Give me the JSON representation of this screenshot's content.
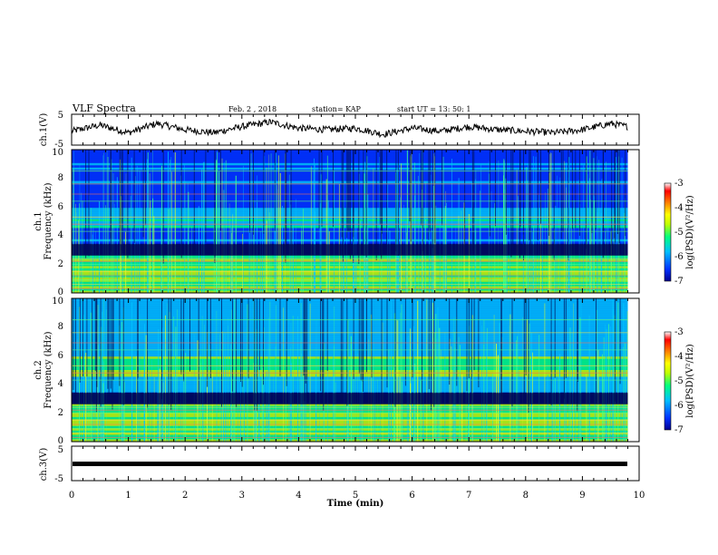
{
  "header": {
    "title": "VLF Spectra",
    "date": "Feb. 2  , 2018",
    "station": "station= KAP",
    "start": "start  UT  =   13: 50: 1"
  },
  "panels": {
    "ch1_wave": {
      "ylabel": "ch.1(V)",
      "ylim": [
        -5,
        5
      ],
      "tick_labels": [
        "5",
        "-5"
      ]
    },
    "ch1_spec": {
      "ylabel": "ch.1\nFrequency (kHz)",
      "ylabel_line1": "ch.1",
      "ylabel_line2": "Frequency (kHz)",
      "ylim": [
        0,
        10
      ],
      "tick_labels": [
        "0",
        "2",
        "4",
        "6",
        "8",
        "10"
      ]
    },
    "ch2_spec": {
      "ylabel_line1": "ch.2",
      "ylabel_line2": "Frequency (kHz)",
      "ylim": [
        0,
        10
      ],
      "tick_labels": [
        "0",
        "2",
        "4",
        "6",
        "8",
        "10"
      ]
    },
    "ch3_wave": {
      "ylabel": "ch.3(V)",
      "ylim": [
        -5,
        5
      ],
      "tick_labels": [
        "5",
        "-5"
      ]
    }
  },
  "xaxis": {
    "label": "Time  (min)",
    "xlim": [
      0,
      10
    ],
    "tick_labels": [
      "0",
      "1",
      "2",
      "3",
      "4",
      "5",
      "6",
      "7",
      "8",
      "9",
      "10"
    ]
  },
  "colorbar": {
    "label": "log(PSD)(V²/Hz)",
    "range": [
      -7,
      -3
    ],
    "tick_labels": [
      "-3",
      "-4",
      "-5",
      "-6",
      "-7"
    ],
    "colors": [
      "#000090",
      "#0030ff",
      "#00c0ff",
      "#00ff80",
      "#c0ff00",
      "#ffff00",
      "#ff8000",
      "#ff0000",
      "#ffffff"
    ]
  },
  "chart_data": [
    {
      "type": "line",
      "title": "VLF Spectra",
      "ylabel": "ch.1(V)",
      "xlabel": "Time  (min)",
      "xlim": [
        0,
        10
      ],
      "ylim": [
        -5,
        5
      ],
      "x": [
        0,
        0.5,
        1,
        1.5,
        2,
        2.5,
        3,
        3.5,
        4,
        4.5,
        5,
        5.5,
        6,
        6.5,
        7,
        7.5,
        8,
        8.5,
        9,
        9.5,
        9.8
      ],
      "values": [
        -0.5,
        1.5,
        -1,
        2,
        0,
        -1,
        1,
        2.5,
        0.5,
        0,
        0.5,
        -1.5,
        0.5,
        -0.5,
        1,
        0,
        -0.5,
        -1,
        0,
        2,
        1
      ]
    },
    {
      "type": "heatmap",
      "ylabel": "Frequency (kHz)",
      "xlabel": "Time  (min)",
      "xlim": [
        0,
        10
      ],
      "ylim": [
        0,
        10
      ],
      "zlim": [
        -7,
        -3
      ]
    },
    {
      "type": "heatmap",
      "ylabel": "Frequency (kHz)",
      "xlabel": "Time  (min)",
      "xlim": [
        0,
        10
      ],
      "ylim": [
        0,
        10
      ],
      "zlim": [
        -7,
        -3
      ]
    },
    {
      "type": "line",
      "ylabel": "ch.3(V)",
      "xlabel": "Time  (min)",
      "xlim": [
        0,
        10
      ],
      "ylim": [
        -5,
        5
      ],
      "x": [
        0,
        9.8
      ],
      "values": [
        -1.5,
        -1.5
      ]
    }
  ]
}
